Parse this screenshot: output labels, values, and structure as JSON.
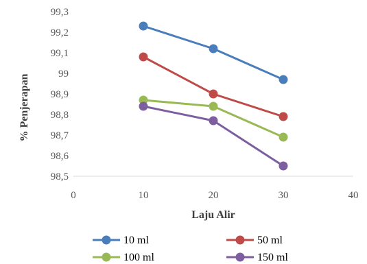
{
  "chart_data": {
    "type": "line",
    "xlabel": "Laju Alir",
    "ylabel": "% Penjerapan",
    "xlim": [
      0,
      40
    ],
    "ylim": [
      98.5,
      99.3
    ],
    "xticks": [
      0,
      10,
      20,
      30,
      40
    ],
    "yticks": [
      98.5,
      98.6,
      98.7,
      98.8,
      98.9,
      99.0,
      99.1,
      99.2,
      99.3
    ],
    "xtick_labels": [
      "0",
      "10",
      "20",
      "30",
      "40"
    ],
    "ytick_labels": [
      "98,5",
      "98,6",
      "98,7",
      "98,8",
      "98,9",
      "99",
      "99,1",
      "99,2",
      "99,3"
    ],
    "grid": false,
    "legend_position": "bottom",
    "x": [
      10,
      20,
      30
    ],
    "series": [
      {
        "name": "10 ml",
        "color": "#4a7ebb",
        "values": [
          99.23,
          99.12,
          98.97
        ]
      },
      {
        "name": "50 ml",
        "color": "#be4b48",
        "values": [
          99.08,
          98.9,
          98.79
        ]
      },
      {
        "name": "100 ml",
        "color": "#98b954",
        "values": [
          98.87,
          98.84,
          98.69
        ]
      },
      {
        "name": "150 ml",
        "color": "#7d5fa0",
        "values": [
          98.84,
          98.77,
          98.55
        ]
      }
    ]
  }
}
